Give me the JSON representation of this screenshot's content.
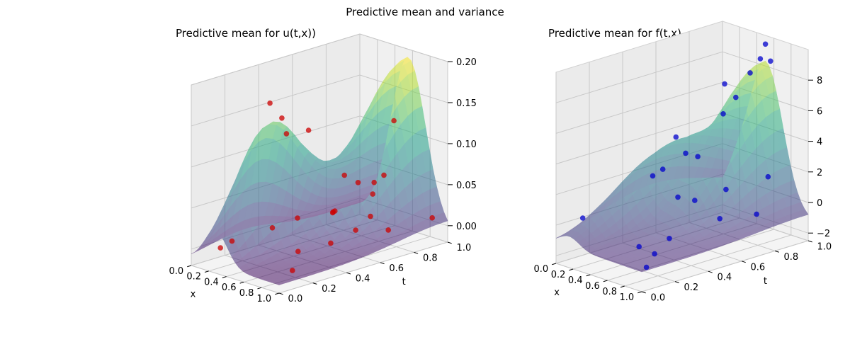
{
  "figure": {
    "title": "Predictive mean and variance"
  },
  "chart_data": [
    {
      "type": "surface3d",
      "title": "Predictive mean for u(t,x))",
      "xlabel": "x",
      "ylabel": "t",
      "zlabel": "",
      "xlim": [
        0,
        1
      ],
      "ylim": [
        0,
        1
      ],
      "zlim": [
        -0.02,
        0.2
      ],
      "xticks": [
        "0.0",
        "0.2",
        "0.4",
        "0.6",
        "0.8",
        "1.0"
      ],
      "yticks": [
        "0.0",
        "0.2",
        "0.4",
        "0.6",
        "0.8",
        "1.0"
      ],
      "zticks": [
        "0.00",
        "0.05",
        "0.10",
        "0.15",
        "0.20"
      ],
      "colormap": "viridis",
      "surface_alpha": 0.5,
      "grid": true,
      "points_color": "#cc0000",
      "points": [
        {
          "x": 0.02,
          "t": 0.62,
          "z": 0.0
        },
        {
          "x": 0.06,
          "t": 0.45,
          "z": 0.0
        },
        {
          "x": 0.08,
          "t": 0.2,
          "z": 0.0
        },
        {
          "x": 0.14,
          "t": 0.1,
          "z": 0.0
        },
        {
          "x": 0.1,
          "t": 0.8,
          "z": 0.0
        },
        {
          "x": 0.3,
          "t": 0.92,
          "z": 0.02
        },
        {
          "x": 0.32,
          "t": 0.3,
          "z": 0.17
        },
        {
          "x": 0.36,
          "t": 0.35,
          "z": 0.15
        },
        {
          "x": 0.22,
          "t": 0.45,
          "z": 0.12
        },
        {
          "x": 0.28,
          "t": 0.55,
          "z": 0.12
        },
        {
          "x": 0.4,
          "t": 0.7,
          "z": 0.06
        },
        {
          "x": 0.46,
          "t": 0.75,
          "z": 0.05
        },
        {
          "x": 0.42,
          "t": 0.62,
          "z": 0.02
        },
        {
          "x": 0.56,
          "t": 0.55,
          "z": 0.03
        },
        {
          "x": 0.58,
          "t": 0.9,
          "z": 0.12
        },
        {
          "x": 0.62,
          "t": 0.82,
          "z": 0.06
        },
        {
          "x": 0.64,
          "t": 0.3,
          "z": 0.0
        },
        {
          "x": 0.7,
          "t": 0.72,
          "z": 0.06
        },
        {
          "x": 0.72,
          "t": 0.6,
          "z": 0.01
        },
        {
          "x": 0.82,
          "t": 0.4,
          "z": 0.01
        },
        {
          "x": 0.9,
          "t": 0.7,
          "z": 0.01
        },
        {
          "x": 0.92,
          "t": 0.95,
          "z": 0.01
        },
        {
          "x": 0.96,
          "t": 0.1,
          "z": 0.0
        },
        {
          "x": 0.85,
          "t": 0.62,
          "z": 0.03
        }
      ]
    },
    {
      "type": "surface3d",
      "title": "Predictive mean for f(t,x)",
      "xlabel": "x",
      "ylabel": "t",
      "zlabel": "",
      "xlim": [
        0,
        1
      ],
      "ylim": [
        0,
        1
      ],
      "zlim": [
        -2.5,
        10
      ],
      "xticks": [
        "0.0",
        "0.2",
        "0.4",
        "0.6",
        "0.8",
        "1.0"
      ],
      "yticks": [
        "0.0",
        "0.2",
        "0.4",
        "0.6",
        "0.8",
        "1.0"
      ],
      "zticks": [
        "−2",
        "0",
        "2",
        "4",
        "6",
        "8"
      ],
      "colormap": "viridis",
      "surface_alpha": 0.5,
      "grid": true,
      "points_color": "#0000cc",
      "points": [
        {
          "x": 0.02,
          "t": 0.15,
          "z": 0.0
        },
        {
          "x": 0.04,
          "t": 0.7,
          "z": 3.5
        },
        {
          "x": 0.06,
          "t": 0.55,
          "z": 1.5
        },
        {
          "x": 0.08,
          "t": 0.6,
          "z": 1.8
        },
        {
          "x": 0.1,
          "t": 0.8,
          "z": 2.0
        },
        {
          "x": 0.18,
          "t": 0.92,
          "z": 6.5
        },
        {
          "x": 0.25,
          "t": 0.65,
          "z": 3.0
        },
        {
          "x": 0.3,
          "t": 0.85,
          "z": 5.0
        },
        {
          "x": 0.35,
          "t": 0.9,
          "z": 6.0
        },
        {
          "x": 0.4,
          "t": 0.96,
          "z": 7.5
        },
        {
          "x": 0.48,
          "t": 0.98,
          "z": 8.5
        },
        {
          "x": 0.52,
          "t": 0.99,
          "z": 9.5
        },
        {
          "x": 0.58,
          "t": 0.99,
          "z": 8.5
        },
        {
          "x": 0.45,
          "t": 0.5,
          "z": 1.0
        },
        {
          "x": 0.55,
          "t": 0.55,
          "z": 0.8
        },
        {
          "x": 0.58,
          "t": 0.2,
          "z": -1.0
        },
        {
          "x": 0.72,
          "t": 0.65,
          "z": 1.5
        },
        {
          "x": 0.74,
          "t": 0.3,
          "z": -0.5
        },
        {
          "x": 0.8,
          "t": 0.18,
          "z": -1.0
        },
        {
          "x": 0.86,
          "t": 0.1,
          "z": -1.5
        },
        {
          "x": 0.92,
          "t": 0.8,
          "z": 2.2
        },
        {
          "x": 0.94,
          "t": 0.5,
          "z": 0.5
        },
        {
          "x": 0.98,
          "t": 0.7,
          "z": 0.2
        }
      ]
    }
  ]
}
